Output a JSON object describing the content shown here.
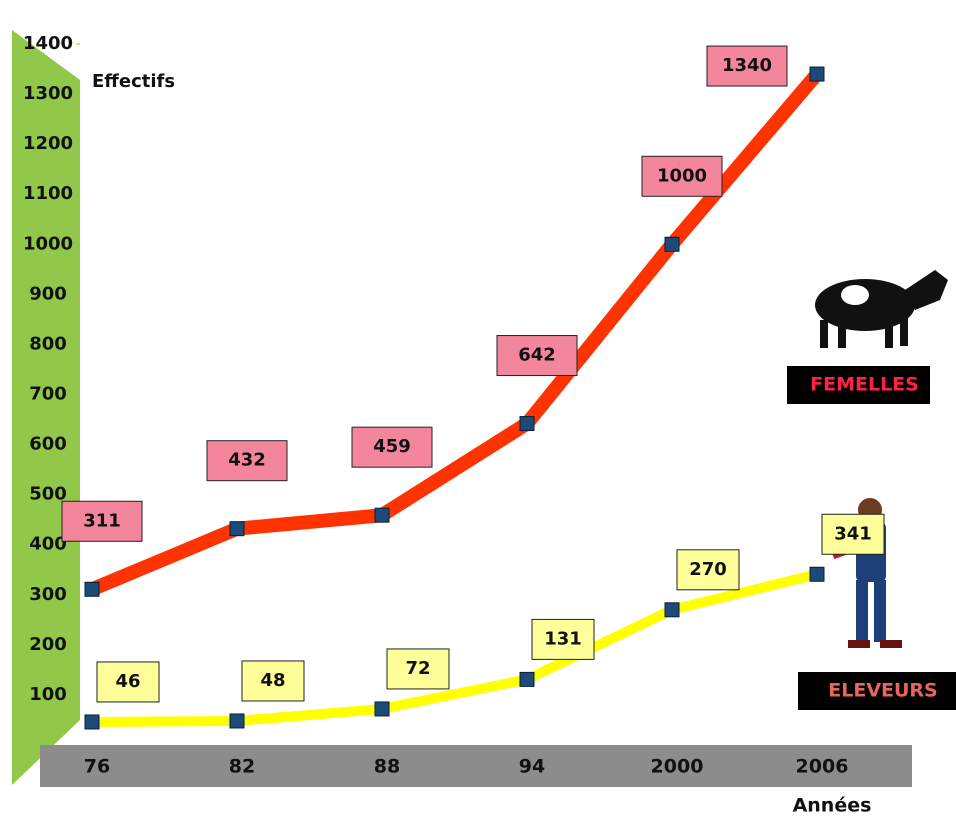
{
  "chart_data": {
    "type": "line",
    "y_label": "Effectifs",
    "x_label": "Années",
    "categories": [
      "76",
      "82",
      "88",
      "94",
      "2000",
      "2006"
    ],
    "series": [
      {
        "name": "FEMELLES",
        "color": "#ff3300",
        "label_fill": "#f3869c",
        "legend_text_color": "#ff2244",
        "values": [
          311,
          432,
          459,
          642,
          1000,
          1340
        ]
      },
      {
        "name": "ELEVEURS",
        "color": "#ffff00",
        "label_fill": "#ffff99",
        "legend_text_color": "#e8665a",
        "values": [
          46,
          48,
          72,
          131,
          270,
          341
        ]
      }
    ],
    "ylim": [
      0,
      1400
    ],
    "yticks": [
      100,
      200,
      300,
      400,
      500,
      600,
      700,
      800,
      900,
      1000,
      1100,
      1200,
      1300,
      1400
    ],
    "grid": false
  }
}
